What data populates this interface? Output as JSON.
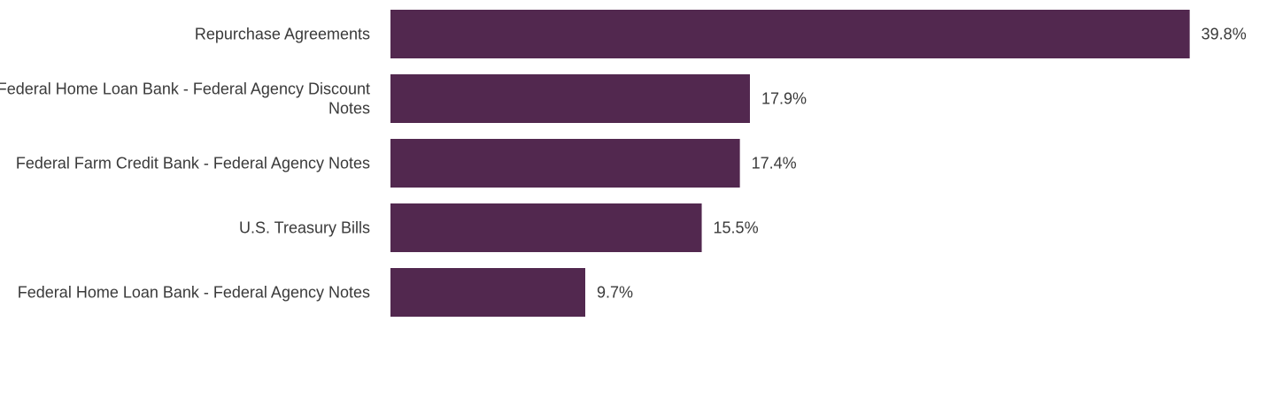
{
  "chart_data": {
    "type": "bar",
    "orientation": "horizontal",
    "categories": [
      "Repurchase Agreements",
      "Federal Home Loan Bank - Federal Agency Discount Notes",
      "Federal Farm Credit Bank - Federal Agency Notes",
      "U.S. Treasury Bills",
      "Federal Home Loan Bank - Federal Agency Notes"
    ],
    "values": [
      39.8,
      17.9,
      17.4,
      15.5,
      9.7
    ],
    "value_labels": [
      "39.8%",
      "17.9%",
      "17.4%",
      "15.5%",
      "9.7%"
    ],
    "xlim": [
      0,
      40
    ],
    "grid": false,
    "legend": "none"
  },
  "colors": {
    "bar": "#52284f",
    "text": "#3a3a3a",
    "background": "#ffffff"
  }
}
